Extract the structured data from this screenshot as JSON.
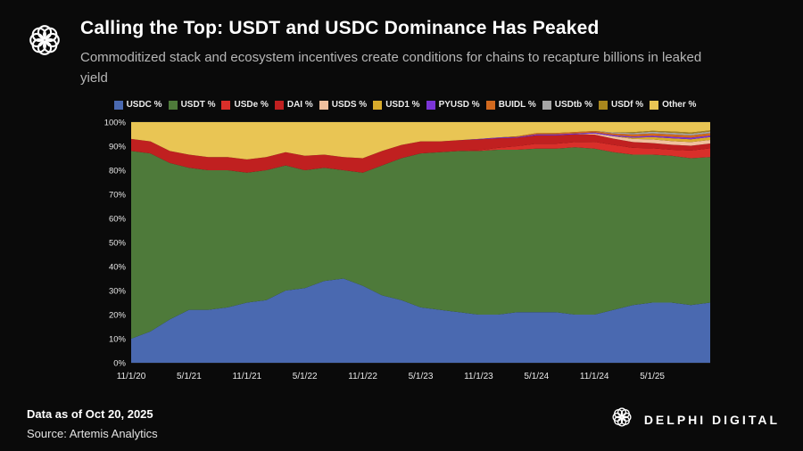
{
  "header": {
    "title": "Calling the Top: USDT and USDC Dominance Has Peaked",
    "subtitle": "Commoditized stack and ecosystem incentives create conditions for chains to recapture billions in leaked yield"
  },
  "footer": {
    "data_as_of": "Data as of Oct 20, 2025",
    "source": "Source: Artemis Analytics",
    "brand": "DELPHI DIGITAL"
  },
  "icons": {
    "header_logo": "delphi-knot-logo",
    "footer_logo": "delphi-knot-logo"
  },
  "colors": {
    "background": "#0a0a0a",
    "plot_background": "#060606",
    "grid": "#262626",
    "axis_text": "#e8e8e8",
    "title_text": "#ffffff",
    "subtitle_text": "#b6b6b6"
  },
  "chart_data": {
    "type": "area",
    "stacked": true,
    "unit": "%",
    "title": "",
    "xlabel": "",
    "ylabel": "",
    "ylim": [
      0,
      100
    ],
    "yticks": [
      0,
      10,
      20,
      30,
      40,
      50,
      60,
      70,
      80,
      90,
      100
    ],
    "legend_position": "top",
    "grid": true,
    "dates": [
      "11/20",
      "1/21",
      "3/21",
      "5/21",
      "7/21",
      "9/21",
      "11/21",
      "1/22",
      "3/22",
      "5/22",
      "7/22",
      "9/22",
      "11/22",
      "1/23",
      "3/23",
      "5/23",
      "7/23",
      "9/23",
      "11/23",
      "1/24",
      "3/24",
      "5/24",
      "7/24",
      "9/24",
      "11/24",
      "1/25",
      "3/25",
      "5/25",
      "7/25",
      "9/25",
      "10/25"
    ],
    "xticks": [
      "11/1/20",
      "5/1/21",
      "11/1/21",
      "5/1/22",
      "11/1/22",
      "5/1/23",
      "11/1/23",
      "5/1/24",
      "11/1/24",
      "5/1/25"
    ],
    "xtick_indices": [
      0,
      3,
      6,
      9,
      12,
      15,
      18,
      21,
      24,
      27
    ],
    "series": [
      {
        "name": "USDC %",
        "color": "#4a69b0",
        "values": [
          10,
          13,
          18,
          22,
          22,
          23,
          25,
          26,
          30,
          31,
          34,
          35,
          32,
          28,
          26,
          23,
          22,
          21,
          20,
          20,
          21,
          21,
          21,
          20,
          20,
          22,
          24,
          25,
          25,
          24,
          25
        ]
      },
      {
        "name": "USDT %",
        "color": "#4e7a3a",
        "values": [
          78,
          74,
          65,
          59,
          58,
          57,
          54,
          54,
          52,
          49,
          47,
          45,
          47,
          54,
          59,
          64,
          65.5,
          67,
          68,
          68.5,
          67.5,
          68,
          68,
          69.5,
          69,
          65.5,
          62.5,
          61.5,
          61,
          61,
          60.5
        ]
      },
      {
        "name": "USDe %",
        "color": "#d92f2a",
        "values": [
          0,
          0,
          0,
          0,
          0,
          0,
          0,
          0,
          0,
          0,
          0,
          0,
          0,
          0,
          0,
          0,
          0,
          0,
          0.3,
          0.8,
          1.5,
          2,
          2,
          2.2,
          2.8,
          3,
          2.8,
          2.6,
          2.5,
          3.2,
          3.6
        ]
      },
      {
        "name": "DAI %",
        "color": "#c02020",
        "values": [
          5,
          5,
          5,
          5.5,
          5.5,
          5.5,
          5.5,
          5.5,
          5.5,
          6,
          5.5,
          5.5,
          6,
          6,
          5.5,
          5,
          4.5,
          4.5,
          4.5,
          4,
          3.5,
          3.5,
          3.5,
          3.2,
          3,
          2.6,
          2.4,
          2.2,
          2.1,
          2,
          2
        ]
      },
      {
        "name": "USDS %",
        "color": "#f0c09e",
        "values": [
          0,
          0,
          0,
          0,
          0,
          0,
          0,
          0,
          0,
          0,
          0,
          0,
          0,
          0,
          0,
          0,
          0,
          0,
          0,
          0,
          0,
          0,
          0,
          0,
          0.5,
          1,
          1.3,
          1.5,
          1.5,
          1.5,
          1.5
        ]
      },
      {
        "name": "USD1 %",
        "color": "#d8ab2c",
        "values": [
          0,
          0,
          0,
          0,
          0,
          0,
          0,
          0,
          0,
          0,
          0,
          0,
          0,
          0,
          0,
          0,
          0,
          0,
          0,
          0,
          0,
          0,
          0,
          0,
          0,
          0,
          0.5,
          1,
          1.2,
          1.2,
          1.2
        ]
      },
      {
        "name": "PYUSD %",
        "color": "#7b35d8",
        "values": [
          0,
          0,
          0,
          0,
          0,
          0,
          0,
          0,
          0,
          0,
          0,
          0,
          0,
          0,
          0,
          0,
          0,
          0,
          0.2,
          0.3,
          0.3,
          0.4,
          0.4,
          0.4,
          0.4,
          0.5,
          0.5,
          0.5,
          0.6,
          0.6,
          0.6
        ]
      },
      {
        "name": "BUIDL %",
        "color": "#d2691e",
        "values": [
          0,
          0,
          0,
          0,
          0,
          0,
          0,
          0,
          0,
          0,
          0,
          0,
          0,
          0,
          0,
          0,
          0,
          0,
          0,
          0,
          0.3,
          0.5,
          0.6,
          0.6,
          0.6,
          0.7,
          0.9,
          1,
          1,
          1,
          1
        ]
      },
      {
        "name": "USDtb %",
        "color": "#a6a6a6",
        "values": [
          0,
          0,
          0,
          0,
          0,
          0,
          0,
          0,
          0,
          0,
          0,
          0,
          0,
          0,
          0,
          0,
          0,
          0,
          0,
          0,
          0,
          0,
          0,
          0,
          0,
          0.4,
          0.6,
          0.7,
          0.7,
          0.7,
          0.7
        ]
      },
      {
        "name": "USDf %",
        "color": "#a8861d",
        "values": [
          0,
          0,
          0,
          0,
          0,
          0,
          0,
          0,
          0,
          0,
          0,
          0,
          0,
          0,
          0,
          0,
          0,
          0,
          0,
          0,
          0,
          0,
          0,
          0,
          0,
          0,
          0.3,
          0.4,
          0.5,
          0.5,
          0.5
        ]
      },
      {
        "name": "Other %",
        "color": "#e9c554",
        "values": [
          7,
          8,
          12,
          13.5,
          14.5,
          14.5,
          15.5,
          14.5,
          12.5,
          14,
          13.5,
          14.5,
          15,
          12,
          9.5,
          8,
          8,
          7.5,
          7,
          6.4,
          5.9,
          4.6,
          4.5,
          4.1,
          3.7,
          4.3,
          4.2,
          3.6,
          3.9,
          4.3,
          3.4
        ]
      }
    ]
  }
}
